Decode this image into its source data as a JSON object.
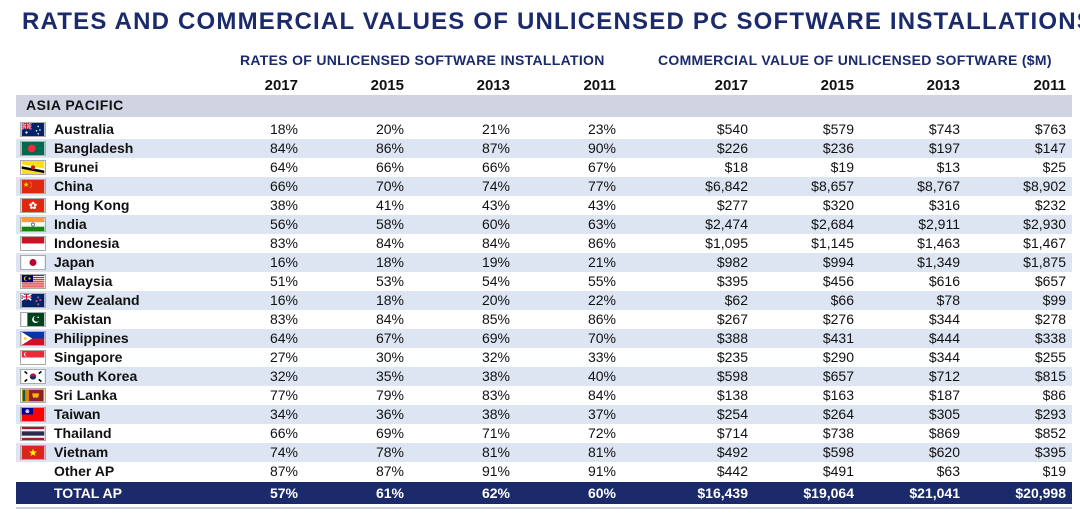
{
  "title": "RATES AND COMMERCIAL VALUES OF UNLICENSED PC SOFTWARE INSTALLATIONS",
  "group_rates": "RATES OF UNLICENSED SOFTWARE INSTALLATION",
  "group_value": "COMMERCIAL VALUE OF UNLICENSED SOFTWARE ($M)",
  "years": [
    "2017",
    "2015",
    "2013",
    "2011",
    "2017",
    "2015",
    "2013",
    "2011"
  ],
  "region": "ASIA PACIFIC",
  "rows": [
    {
      "name": "Australia",
      "flag": "australia-flag",
      "values": [
        "18%",
        "20%",
        "21%",
        "23%",
        "$540",
        "$579",
        "$743",
        "$763"
      ]
    },
    {
      "name": "Bangladesh",
      "flag": "bangladesh-flag",
      "values": [
        "84%",
        "86%",
        "87%",
        "90%",
        "$226",
        "$236",
        "$197",
        "$147"
      ]
    },
    {
      "name": "Brunei",
      "flag": "brunei-flag",
      "values": [
        "64%",
        "66%",
        "66%",
        "67%",
        "$18",
        "$19",
        "$13",
        "$25"
      ]
    },
    {
      "name": "China",
      "flag": "china-flag",
      "values": [
        "66%",
        "70%",
        "74%",
        "77%",
        "$6,842",
        "$8,657",
        "$8,767",
        "$8,902"
      ]
    },
    {
      "name": "Hong Kong",
      "flag": "hong-kong-flag",
      "values": [
        "38%",
        "41%",
        "43%",
        "43%",
        "$277",
        "$320",
        "$316",
        "$232"
      ]
    },
    {
      "name": "India",
      "flag": "india-flag",
      "values": [
        "56%",
        "58%",
        "60%",
        "63%",
        "$2,474",
        "$2,684",
        "$2,911",
        "$2,930"
      ]
    },
    {
      "name": "Indonesia",
      "flag": "indonesia-flag",
      "values": [
        "83%",
        "84%",
        "84%",
        "86%",
        "$1,095",
        "$1,145",
        "$1,463",
        "$1,467"
      ]
    },
    {
      "name": "Japan",
      "flag": "japan-flag",
      "values": [
        "16%",
        "18%",
        "19%",
        "21%",
        "$982",
        "$994",
        "$1,349",
        "$1,875"
      ]
    },
    {
      "name": "Malaysia",
      "flag": "malaysia-flag",
      "values": [
        "51%",
        "53%",
        "54%",
        "55%",
        "$395",
        "$456",
        "$616",
        "$657"
      ]
    },
    {
      "name": "New Zealand",
      "flag": "new-zealand-flag",
      "values": [
        "16%",
        "18%",
        "20%",
        "22%",
        "$62",
        "$66",
        "$78",
        "$99"
      ]
    },
    {
      "name": "Pakistan",
      "flag": "pakistan-flag",
      "values": [
        "83%",
        "84%",
        "85%",
        "86%",
        "$267",
        "$276",
        "$344",
        "$278"
      ]
    },
    {
      "name": "Philippines",
      "flag": "philippines-flag",
      "values": [
        "64%",
        "67%",
        "69%",
        "70%",
        "$388",
        "$431",
        "$444",
        "$338"
      ]
    },
    {
      "name": "Singapore",
      "flag": "singapore-flag",
      "values": [
        "27%",
        "30%",
        "32%",
        "33%",
        "$235",
        "$290",
        "$344",
        "$255"
      ]
    },
    {
      "name": "South Korea",
      "flag": "south-korea-flag",
      "values": [
        "32%",
        "35%",
        "38%",
        "40%",
        "$598",
        "$657",
        "$712",
        "$815"
      ]
    },
    {
      "name": "Sri Lanka",
      "flag": "sri-lanka-flag",
      "values": [
        "77%",
        "79%",
        "83%",
        "84%",
        "$138",
        "$163",
        "$187",
        "$86"
      ]
    },
    {
      "name": "Taiwan",
      "flag": "taiwan-flag",
      "values": [
        "34%",
        "36%",
        "38%",
        "37%",
        "$254",
        "$264",
        "$305",
        "$293"
      ]
    },
    {
      "name": "Thailand",
      "flag": "thailand-flag",
      "values": [
        "66%",
        "69%",
        "71%",
        "72%",
        "$714",
        "$738",
        "$869",
        "$852"
      ]
    },
    {
      "name": "Vietnam",
      "flag": "vietnam-flag",
      "values": [
        "74%",
        "78%",
        "81%",
        "81%",
        "$492",
        "$598",
        "$620",
        "$395"
      ]
    },
    {
      "name": "Other AP",
      "flag": "",
      "values": [
        "87%",
        "87%",
        "91%",
        "91%",
        "$442",
        "$491",
        "$63",
        "$19"
      ]
    }
  ],
  "total": {
    "name": "TOTAL AP",
    "values": [
      "57%",
      "61%",
      "62%",
      "60%",
      "$16,439",
      "$19,064",
      "$21,041",
      "$20,998"
    ]
  },
  "colors": {
    "title": "#1b2a6b",
    "region_band": "#cfd3e2",
    "row_shade": "#dde5f3",
    "total_band": "#1b2a6b"
  }
}
